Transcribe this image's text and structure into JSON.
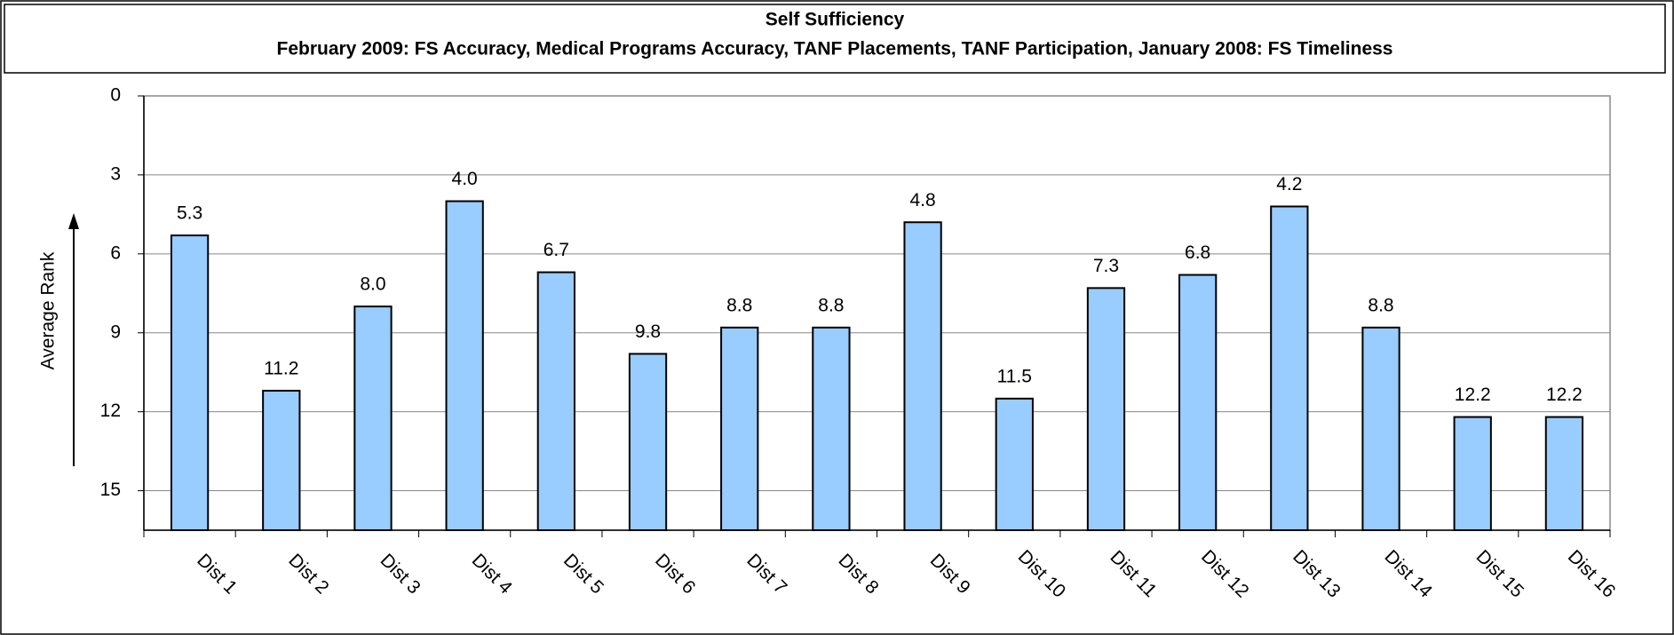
{
  "chart_data": {
    "type": "bar",
    "title": "Self Sufficiency",
    "subtitle": "February 2009: FS Accuracy, Medical Programs Accuracy, TANF Placements, TANF Participation, January 2008: FS Timeliness",
    "y_label": "Average Rank",
    "categories": [
      "Dist 1",
      "Dist 2",
      "Dist 3",
      "Dist 4",
      "Dist 5",
      "Dist 6",
      "Dist 7",
      "Dist 8",
      "Dist 9",
      "Dist 10",
      "Dist 11",
      "Dist 12",
      "Dist 13",
      "Dist 14",
      "Dist 15",
      "Dist 16"
    ],
    "values": [
      5.3,
      11.2,
      8.0,
      4.0,
      6.7,
      9.8,
      8.8,
      8.8,
      4.8,
      11.5,
      7.3,
      6.8,
      4.2,
      8.8,
      12.2,
      12.2
    ],
    "value_labels": [
      "5.3",
      "11.2",
      "8.0",
      "4.0",
      "6.7",
      "9.8",
      "8.8",
      "8.8",
      "4.8",
      "11.5",
      "7.3",
      "6.8",
      "4.2",
      "8.8",
      "12.2",
      "12.2"
    ],
    "color": "#99ccff",
    "ylim": [
      0,
      16.5
    ],
    "yticks": [
      0,
      3,
      6,
      9,
      12,
      15
    ],
    "y_inverted": true,
    "grid": true
  }
}
